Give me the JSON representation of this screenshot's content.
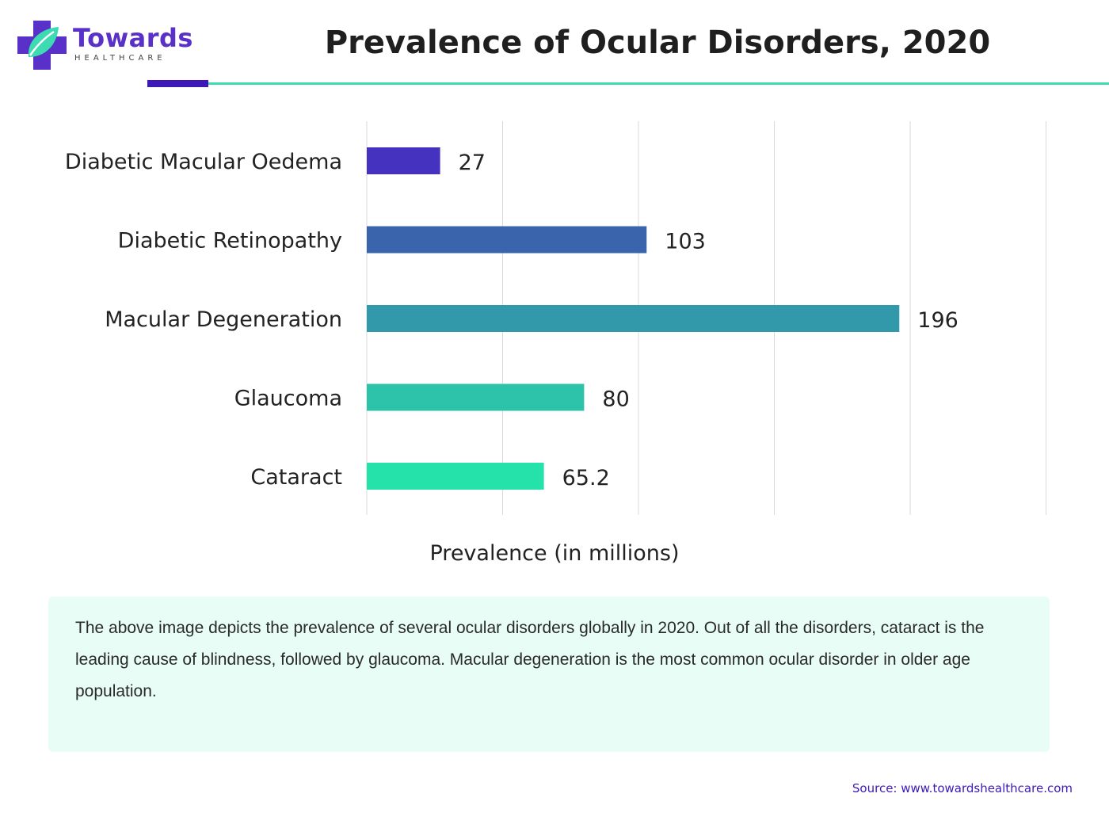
{
  "brand": {
    "name": "Towards",
    "subtitle": "HEALTHCARE",
    "colors": {
      "primary": "#5a31c8",
      "accent": "#3ddbb2",
      "dark": "#3d19b8"
    }
  },
  "title": "Prevalence of Ocular Disorders, 2020",
  "chart_data": {
    "type": "bar",
    "orientation": "horizontal",
    "categories": [
      "Diabetic Macular Oedema",
      "Diabetic Retinopathy",
      "Macular Degeneration",
      "Glaucoma",
      "Cataract"
    ],
    "values": [
      27,
      103,
      196,
      80,
      65.2
    ],
    "value_labels": [
      "27",
      "103",
      "196",
      "80",
      "65.2"
    ],
    "colors": [
      "#4532bf",
      "#3a65ad",
      "#3199aa",
      "#2cc3aa",
      "#25e2ab"
    ],
    "title": "Prevalence of Ocular Disorders, 2020",
    "xlabel": "Prevalence (in millions)",
    "ylabel": "",
    "xlim": [
      0,
      250
    ],
    "grid": true,
    "legend": "none"
  },
  "description": "The above image depicts the prevalence of several ocular disorders globally in 2020. Out of all the disorders, cataract is the leading cause of blindness, followed by glaucoma. Macular degeneration is the most common ocular disorder in older age population.",
  "source": "Source: www.towardshealthcare.com"
}
